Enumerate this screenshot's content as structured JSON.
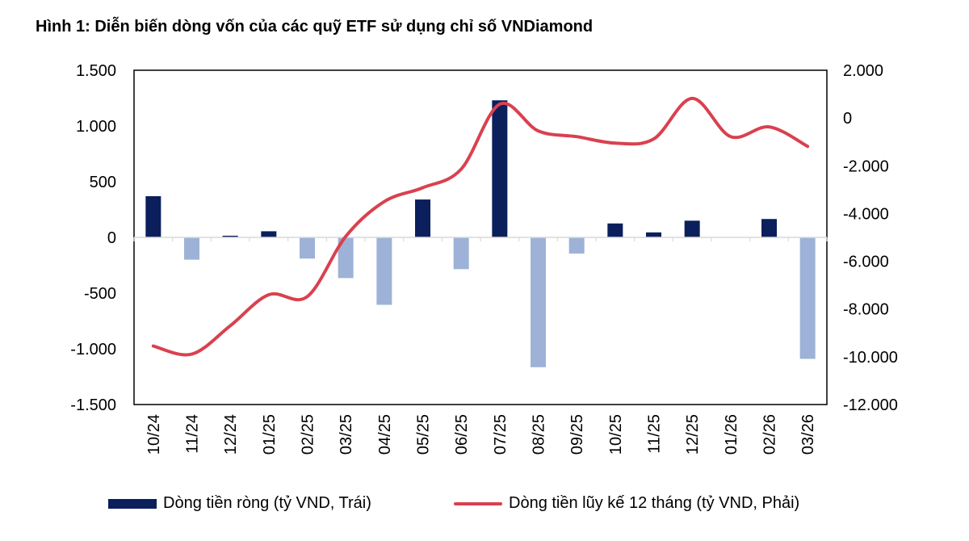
{
  "chart_data": {
    "type": "bar+line",
    "title": "Hình 1: Diễn biến dòng vốn của các quỹ ETF sử dụng chỉ số VNDiamond",
    "categories": [
      "10/24",
      "11/24",
      "12/24",
      "01/25",
      "02/25",
      "03/25",
      "04/25",
      "05/25",
      "06/25",
      "07/25",
      "08/25",
      "09/25",
      "10/25",
      "11/25",
      "12/25",
      "01/26",
      "02/26",
      "03/26"
    ],
    "series": [
      {
        "name": "Dòng tiền ròng (tỷ VND, Trái)",
        "type": "bar",
        "axis": "left",
        "values": [
          370,
          -200,
          15,
          55,
          -190,
          -365,
          -605,
          340,
          -285,
          1230,
          -1165,
          -145,
          125,
          45,
          150,
          0,
          165,
          -1090
        ],
        "color_positive": "#0b1f5c",
        "color_negative": "#9db2d6"
      },
      {
        "name": "Dòng tiền lũy kế 12 tháng (tỷ VND, Phải)",
        "type": "line",
        "axis": "right",
        "values": [
          -9550,
          -9890,
          -8700,
          -7400,
          -7480,
          -4960,
          -3500,
          -2920,
          -2140,
          580,
          -540,
          -780,
          -1050,
          -880,
          820,
          -780,
          -370,
          -1190
        ],
        "color": "#d9414f",
        "smooth": true
      }
    ],
    "left_axis": {
      "range": [
        -1500,
        1500
      ],
      "ticks": [
        1500,
        1000,
        500,
        0,
        -500,
        -1000,
        -1500
      ],
      "labels": [
        "1.500",
        "1.000",
        "500",
        "0",
        "-500",
        "-1.000",
        "-1.500"
      ]
    },
    "right_axis": {
      "range": [
        -12000,
        2000
      ],
      "ticks": [
        2000,
        0,
        -2000,
        -4000,
        -6000,
        -8000,
        -10000,
        -12000
      ],
      "labels": [
        "2.000",
        "0",
        "-2.000",
        "-4.000",
        "-6.000",
        "-8.000",
        "-10.000",
        "-12.000"
      ]
    },
    "grid": false,
    "legend_position": "bottom"
  }
}
